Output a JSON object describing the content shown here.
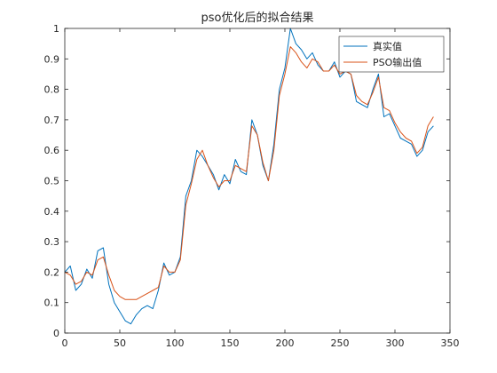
{
  "chart_data": {
    "type": "line",
    "title": "pso优化后的拟合结果",
    "xlabel": "",
    "ylabel": "",
    "xlim": [
      0,
      350
    ],
    "ylim": [
      0,
      1
    ],
    "x_ticks": [
      "0",
      "50",
      "100",
      "150",
      "200",
      "250",
      "300",
      "350"
    ],
    "y_ticks": [
      "0",
      "0.1",
      "0.2",
      "0.3",
      "0.4",
      "0.5",
      "0.6",
      "0.7",
      "0.8",
      "0.9",
      "1"
    ],
    "grid": false,
    "legend_position": "top-right",
    "series": [
      {
        "name": "真实值",
        "color": "#0072BD",
        "x": [
          0,
          5,
          10,
          15,
          20,
          25,
          30,
          35,
          40,
          45,
          50,
          55,
          60,
          65,
          70,
          75,
          80,
          85,
          90,
          95,
          100,
          105,
          110,
          115,
          120,
          125,
          130,
          135,
          140,
          145,
          150,
          155,
          160,
          165,
          170,
          175,
          180,
          185,
          190,
          195,
          200,
          205,
          210,
          215,
          220,
          225,
          230,
          235,
          240,
          245,
          250,
          255,
          260,
          265,
          270,
          275,
          280,
          285,
          290,
          295,
          300,
          305,
          310,
          315,
          320,
          325,
          330,
          335
        ],
        "y": [
          0.2,
          0.22,
          0.14,
          0.16,
          0.21,
          0.18,
          0.27,
          0.28,
          0.16,
          0.1,
          0.07,
          0.04,
          0.03,
          0.06,
          0.08,
          0.09,
          0.08,
          0.14,
          0.23,
          0.19,
          0.2,
          0.25,
          0.45,
          0.5,
          0.6,
          0.58,
          0.55,
          0.52,
          0.47,
          0.52,
          0.49,
          0.57,
          0.53,
          0.52,
          0.7,
          0.65,
          0.55,
          0.5,
          0.62,
          0.8,
          0.87,
          1.0,
          0.95,
          0.93,
          0.9,
          0.92,
          0.88,
          0.86,
          0.86,
          0.89,
          0.84,
          0.86,
          0.85,
          0.76,
          0.75,
          0.74,
          0.8,
          0.85,
          0.71,
          0.72,
          0.68,
          0.64,
          0.63,
          0.62,
          0.58,
          0.6,
          0.66,
          0.68
        ]
      },
      {
        "name": "PSO输出值",
        "color": "#D95319",
        "x": [
          0,
          5,
          10,
          15,
          20,
          25,
          30,
          35,
          40,
          45,
          50,
          55,
          60,
          65,
          70,
          75,
          80,
          85,
          90,
          95,
          100,
          105,
          110,
          115,
          120,
          125,
          130,
          135,
          140,
          145,
          150,
          155,
          160,
          165,
          170,
          175,
          180,
          185,
          190,
          195,
          200,
          205,
          210,
          215,
          220,
          225,
          230,
          235,
          240,
          245,
          250,
          255,
          260,
          265,
          270,
          275,
          280,
          285,
          290,
          295,
          300,
          305,
          310,
          315,
          320,
          325,
          330,
          335
        ],
        "y": [
          0.2,
          0.19,
          0.16,
          0.17,
          0.2,
          0.19,
          0.24,
          0.25,
          0.19,
          0.14,
          0.12,
          0.11,
          0.11,
          0.11,
          0.12,
          0.13,
          0.14,
          0.15,
          0.22,
          0.2,
          0.2,
          0.24,
          0.42,
          0.49,
          0.57,
          0.6,
          0.55,
          0.51,
          0.48,
          0.5,
          0.5,
          0.55,
          0.54,
          0.53,
          0.68,
          0.65,
          0.56,
          0.5,
          0.6,
          0.78,
          0.85,
          0.94,
          0.92,
          0.89,
          0.87,
          0.9,
          0.89,
          0.86,
          0.86,
          0.88,
          0.85,
          0.86,
          0.85,
          0.78,
          0.76,
          0.75,
          0.79,
          0.84,
          0.74,
          0.73,
          0.69,
          0.66,
          0.64,
          0.63,
          0.59,
          0.61,
          0.68,
          0.71
        ]
      }
    ]
  }
}
